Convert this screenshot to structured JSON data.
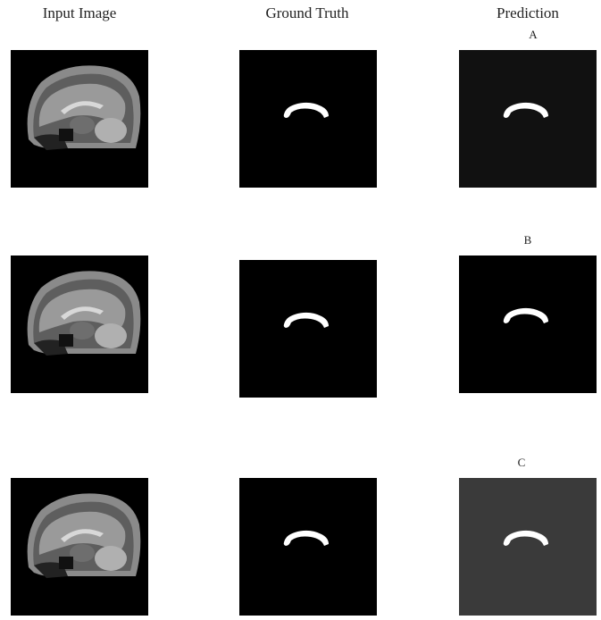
{
  "columns": [
    "Input Image",
    "Ground Truth",
    "Prediction"
  ],
  "prediction_labels": [
    "A",
    "B",
    "C"
  ]
}
